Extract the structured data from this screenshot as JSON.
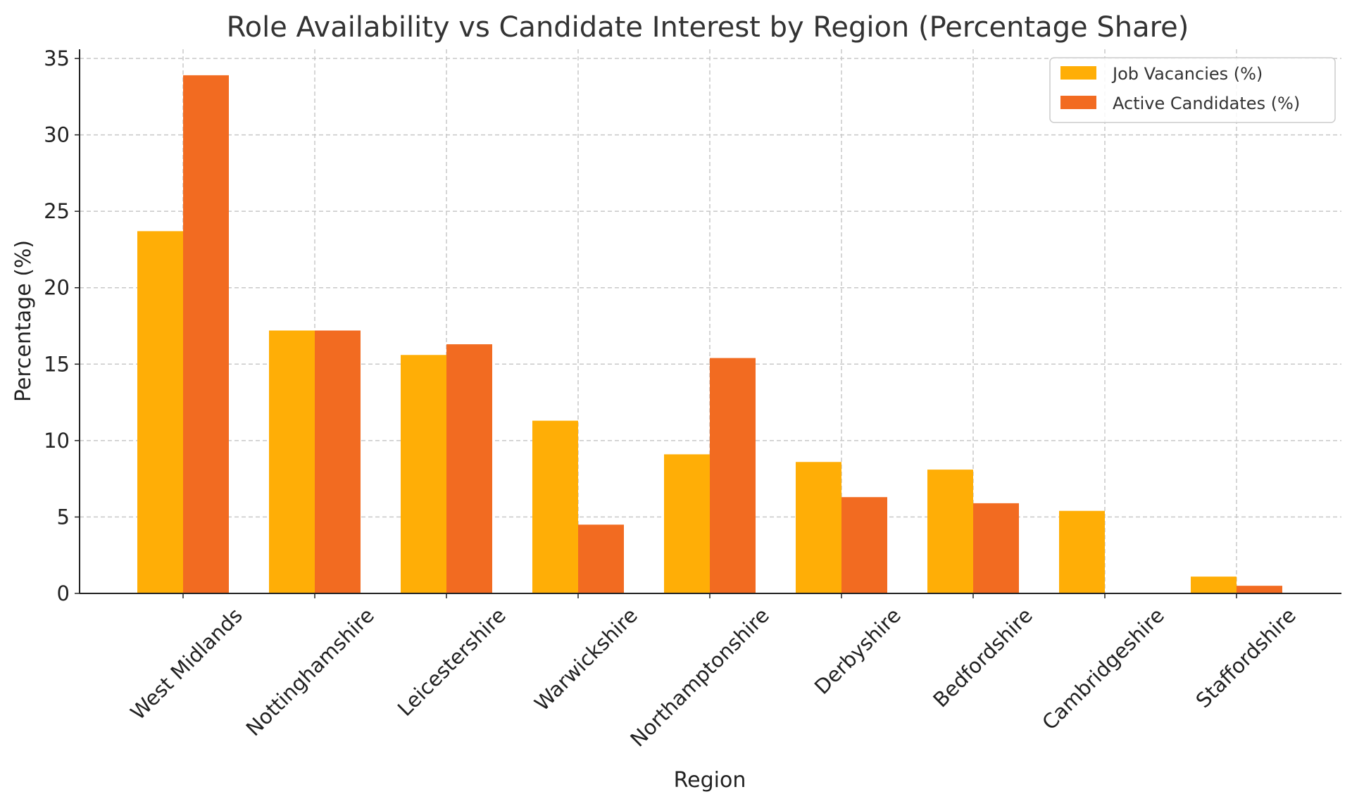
{
  "chart_data": {
    "type": "bar",
    "title": "Role Availability vs Candidate Interest by Region (Percentage Share)",
    "xlabel": "Region",
    "ylabel": "Percentage (%)",
    "categories": [
      "West Midlands",
      "Nottinghamshire",
      "Leicestershire",
      "Warwickshire",
      "Northamptonshire",
      "Derbyshire",
      "Bedfordshire",
      "Cambridgeshire",
      "Staffordshire"
    ],
    "series": [
      {
        "name": "Job Vacancies (%)",
        "color": "#FFAE06",
        "values": [
          23.7,
          17.2,
          15.6,
          11.3,
          9.1,
          8.6,
          8.1,
          5.4,
          1.1
        ]
      },
      {
        "name": "Active Candidates (%)",
        "color": "#F26B21",
        "values": [
          33.9,
          17.2,
          16.3,
          4.5,
          15.4,
          6.3,
          5.9,
          0.0,
          0.5
        ]
      }
    ],
    "ylim": [
      0,
      35.6
    ],
    "yticks": [
      0,
      5,
      10,
      15,
      20,
      25,
      30,
      35
    ],
    "grid": true,
    "legend_position": "top-right"
  }
}
